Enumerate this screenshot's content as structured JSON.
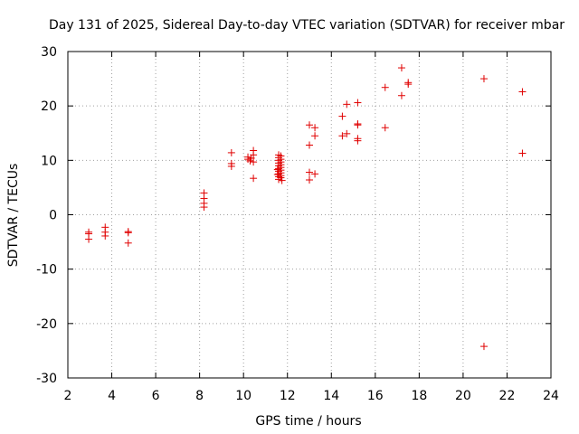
{
  "chart_data": {
    "type": "scatter",
    "title": "Day 131 of 2025, Sidereal Day-to-day VTEC variation (SDTVAR) for receiver mbar",
    "xlabel": "GPS time / hours",
    "ylabel": "SDTVAR / TECUs",
    "xlim": [
      2,
      24
    ],
    "ylim": [
      -30,
      30
    ],
    "xticks": [
      2,
      4,
      6,
      8,
      10,
      12,
      14,
      16,
      18,
      20,
      22,
      24
    ],
    "yticks": [
      -30,
      -20,
      -10,
      0,
      10,
      20,
      30
    ],
    "grid": true,
    "marker": "+",
    "color": "#e00000",
    "series": [
      {
        "name": "mbar",
        "points": [
          [
            2.95,
            -3.2
          ],
          [
            2.95,
            -3.5
          ],
          [
            2.95,
            -4.5
          ],
          [
            3.7,
            -2.3
          ],
          [
            3.7,
            -3.2
          ],
          [
            3.7,
            -3.9
          ],
          [
            4.75,
            -3.1
          ],
          [
            4.75,
            -3.3
          ],
          [
            4.75,
            -5.2
          ],
          [
            8.2,
            4.0
          ],
          [
            8.2,
            3.0
          ],
          [
            8.2,
            2.1
          ],
          [
            8.2,
            1.4
          ],
          [
            9.45,
            11.4
          ],
          [
            9.45,
            9.4
          ],
          [
            9.45,
            8.9
          ],
          [
            10.2,
            10.2
          ],
          [
            10.2,
            10.6
          ],
          [
            10.3,
            9.9
          ],
          [
            10.35,
            10.4
          ],
          [
            10.45,
            11.8
          ],
          [
            10.45,
            11.0
          ],
          [
            10.45,
            9.7
          ],
          [
            10.45,
            6.7
          ],
          [
            11.6,
            11.0
          ],
          [
            11.6,
            10.5
          ],
          [
            11.6,
            10.0
          ],
          [
            11.6,
            9.5
          ],
          [
            11.6,
            9.0
          ],
          [
            11.6,
            8.5
          ],
          [
            11.6,
            8.0
          ],
          [
            11.6,
            7.5
          ],
          [
            11.6,
            7.0
          ],
          [
            11.6,
            6.5
          ],
          [
            11.7,
            10.8
          ],
          [
            11.7,
            10.2
          ],
          [
            11.7,
            9.7
          ],
          [
            11.7,
            9.2
          ],
          [
            11.7,
            8.7
          ],
          [
            11.7,
            8.2
          ],
          [
            11.7,
            7.7
          ],
          [
            11.7,
            7.2
          ],
          [
            11.7,
            6.8
          ],
          [
            11.55,
            8.3
          ],
          [
            11.55,
            7.4
          ],
          [
            11.75,
            6.3
          ],
          [
            13.0,
            16.5
          ],
          [
            13.0,
            12.8
          ],
          [
            13.0,
            7.8
          ],
          [
            13.0,
            6.4
          ],
          [
            13.25,
            16.0
          ],
          [
            13.25,
            14.5
          ],
          [
            13.25,
            7.5
          ],
          [
            14.5,
            18.1
          ],
          [
            14.5,
            14.5
          ],
          [
            14.7,
            20.3
          ],
          [
            14.7,
            14.9
          ],
          [
            15.2,
            20.6
          ],
          [
            15.2,
            16.7
          ],
          [
            15.2,
            16.5
          ],
          [
            15.2,
            14.0
          ],
          [
            15.2,
            13.6
          ],
          [
            16.45,
            23.4
          ],
          [
            16.45,
            16.0
          ],
          [
            17.2,
            27.0
          ],
          [
            17.2,
            21.9
          ],
          [
            17.5,
            24.3
          ],
          [
            17.5,
            24.0
          ],
          [
            20.95,
            25.0
          ],
          [
            20.95,
            -24.2
          ],
          [
            22.7,
            22.6
          ],
          [
            22.7,
            11.3
          ]
        ]
      }
    ]
  }
}
